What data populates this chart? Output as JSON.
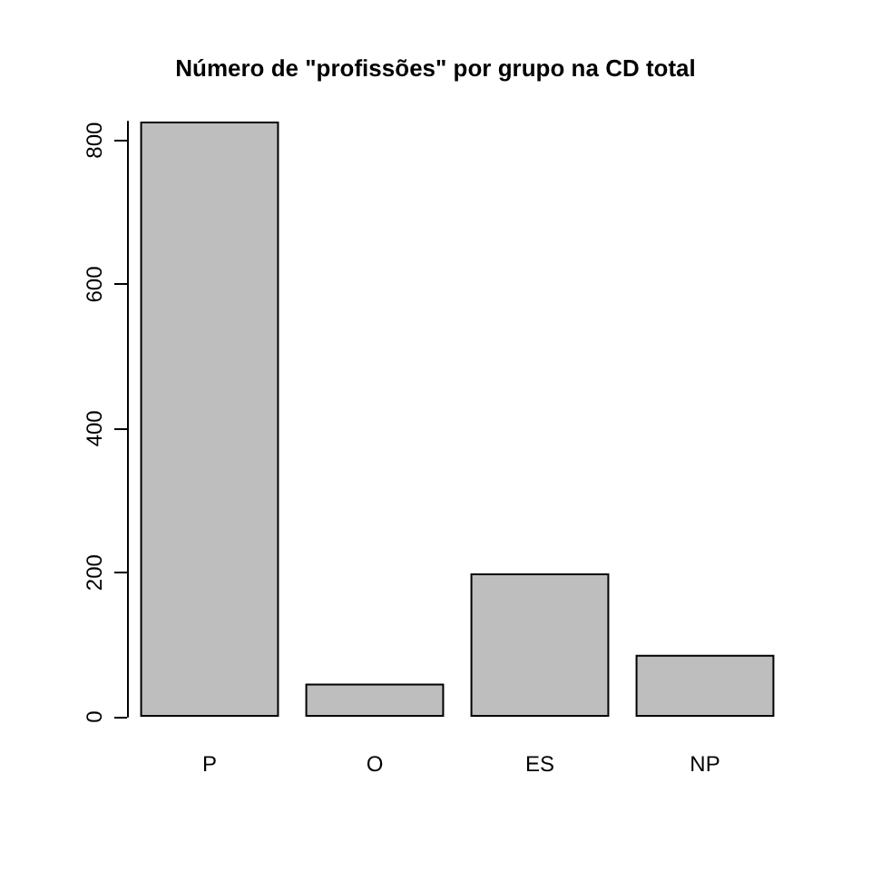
{
  "chart_data": {
    "type": "bar",
    "title": "Número de \"profissões\" por grupo na CD total",
    "categories": [
      "P",
      "O",
      "ES",
      "NP"
    ],
    "values": [
      826,
      46,
      199,
      86
    ],
    "color": "#bebebe",
    "ylim": [
      0,
      826
    ],
    "yticks": [
      0,
      200,
      400,
      600,
      800
    ],
    "grid": false
  }
}
